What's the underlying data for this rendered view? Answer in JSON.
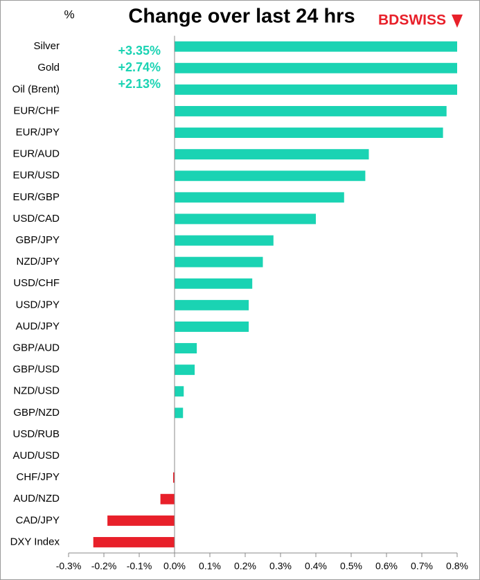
{
  "chart_data": {
    "type": "barh",
    "title": "Change over last 24 hrs",
    "unit_label": "%",
    "logo": "BDSWISS",
    "categories": [
      "Silver",
      "Gold",
      "Oil (Brent)",
      "EUR/CHF",
      "EUR/JPY",
      "EUR/AUD",
      "EUR/USD",
      "EUR/GBP",
      "USD/CAD",
      "GBP/JPY",
      "NZD/JPY",
      "USD/CHF",
      "USD/JPY",
      "AUD/JPY",
      "GBP/AUD",
      "GBP/USD",
      "NZD/USD",
      "GBP/NZD",
      "USD/RUB",
      "AUD/USD",
      "CHF/JPY",
      "AUD/NZD",
      "CAD/JPY",
      "DXY Index"
    ],
    "values": [
      3.35,
      2.74,
      2.13,
      0.77,
      0.76,
      0.55,
      0.54,
      0.48,
      0.4,
      0.28,
      0.25,
      0.22,
      0.21,
      0.21,
      0.063,
      0.057,
      0.026,
      0.024,
      0,
      0,
      -0.004,
      -0.04,
      -0.19,
      -0.23
    ],
    "value_labels": [
      "+3.35%",
      "+2.74%",
      "+2.13%",
      null,
      null,
      null,
      null,
      null,
      null,
      null,
      null,
      null,
      null,
      null,
      null,
      null,
      null,
      null,
      null,
      null,
      null,
      null,
      null,
      null
    ],
    "positive_color": "#1ad3b3",
    "negative_color": "#e8202a",
    "xlim": [
      -0.3,
      0.8
    ],
    "xticks": [
      {
        "value": -0.3,
        "label": "-0.3%"
      },
      {
        "value": -0.2,
        "label": "-0.2%"
      },
      {
        "value": -0.1,
        "label": "-0.1%"
      },
      {
        "value": 0,
        "label": "0.0%"
      },
      {
        "value": 0.1,
        "label": "0.1%"
      },
      {
        "value": 0.2,
        "label": "0.2%"
      },
      {
        "value": 0.3,
        "label": "0.3%"
      },
      {
        "value": 0.4,
        "label": "0.4%"
      },
      {
        "value": 0.5,
        "label": "0.5%"
      },
      {
        "value": 0.6,
        "label": "0.6%"
      },
      {
        "value": 0.7,
        "label": "0.7%"
      },
      {
        "value": 0.8,
        "label": "0.8%"
      }
    ],
    "grid": false
  }
}
